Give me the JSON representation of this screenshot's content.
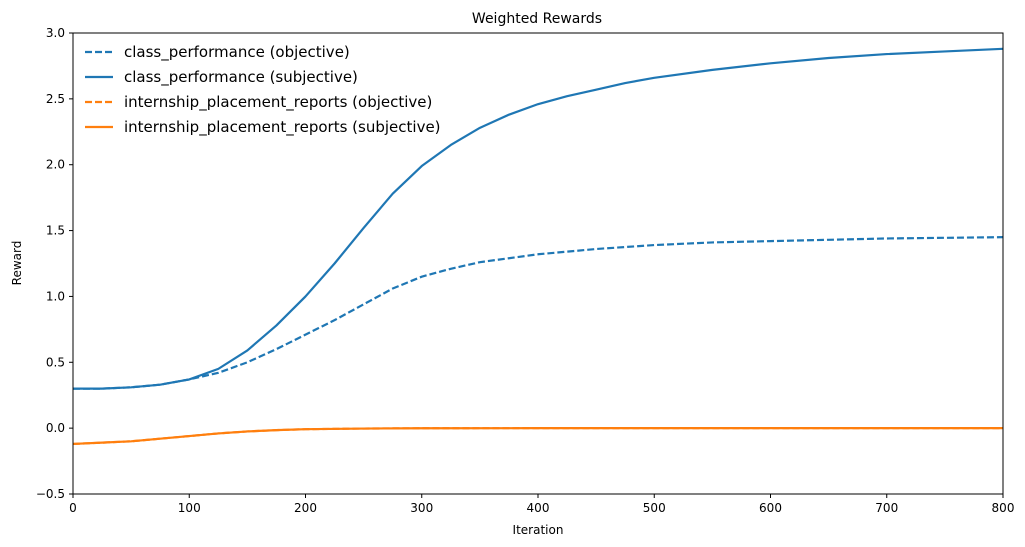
{
  "chart_data": {
    "type": "line",
    "title": "Weighted Rewards",
    "xlabel": "Iteration",
    "ylabel": "Reward",
    "xlim": [
      0,
      800
    ],
    "ylim": [
      -0.5,
      3.0
    ],
    "xticks": [
      0,
      100,
      200,
      300,
      400,
      500,
      600,
      700,
      800
    ],
    "yticks": [
      -0.5,
      0.0,
      0.5,
      1.0,
      1.5,
      2.0,
      2.5,
      3.0
    ],
    "xtick_labels": [
      "0",
      "100",
      "200",
      "300",
      "400",
      "500",
      "600",
      "700",
      "800"
    ],
    "ytick_labels": [
      "−0.5",
      "0.0",
      "0.5",
      "1.0",
      "1.5",
      "2.0",
      "2.5",
      "3.0"
    ],
    "grid": false,
    "legend_position": "top-left",
    "series": [
      {
        "name": "class_performance (objective)",
        "color": "#1f77b4",
        "style": "dashed",
        "x": [
          0,
          25,
          50,
          75,
          100,
          125,
          150,
          175,
          200,
          225,
          250,
          275,
          300,
          325,
          350,
          375,
          400,
          450,
          500,
          550,
          600,
          650,
          700,
          750,
          800
        ],
        "y": [
          0.3,
          0.3,
          0.31,
          0.33,
          0.37,
          0.42,
          0.5,
          0.6,
          0.71,
          0.82,
          0.94,
          1.06,
          1.15,
          1.21,
          1.26,
          1.29,
          1.32,
          1.36,
          1.39,
          1.41,
          1.42,
          1.43,
          1.44,
          1.445,
          1.45
        ]
      },
      {
        "name": "class_performance (subjective)",
        "color": "#1f77b4",
        "style": "solid",
        "x": [
          0,
          25,
          50,
          75,
          100,
          125,
          150,
          175,
          200,
          225,
          250,
          275,
          300,
          325,
          350,
          375,
          400,
          425,
          450,
          475,
          500,
          550,
          600,
          650,
          700,
          750,
          800
        ],
        "y": [
          0.3,
          0.3,
          0.31,
          0.33,
          0.37,
          0.45,
          0.59,
          0.78,
          1.0,
          1.25,
          1.52,
          1.78,
          1.99,
          2.15,
          2.28,
          2.38,
          2.46,
          2.52,
          2.57,
          2.62,
          2.66,
          2.72,
          2.77,
          2.81,
          2.84,
          2.86,
          2.88
        ]
      },
      {
        "name": "internship_placement_reports (objective)",
        "color": "#ff7f0e",
        "style": "dashed",
        "x": [
          0,
          25,
          50,
          75,
          100,
          125,
          150,
          175,
          200,
          250,
          300,
          400,
          500,
          600,
          700,
          800
        ],
        "y": [
          -0.12,
          -0.11,
          -0.1,
          -0.08,
          -0.06,
          -0.04,
          -0.025,
          -0.015,
          -0.008,
          -0.003,
          -0.001,
          0.0,
          0.0,
          0.0,
          0.0,
          0.0
        ]
      },
      {
        "name": "internship_placement_reports (subjective)",
        "color": "#ff7f0e",
        "style": "solid",
        "x": [
          0,
          25,
          50,
          75,
          100,
          125,
          150,
          175,
          200,
          250,
          300,
          400,
          500,
          600,
          700,
          800
        ],
        "y": [
          -0.12,
          -0.11,
          -0.1,
          -0.08,
          -0.06,
          -0.04,
          -0.025,
          -0.015,
          -0.008,
          -0.003,
          -0.001,
          0.0,
          0.0,
          0.0,
          0.0,
          0.0
        ]
      }
    ]
  }
}
